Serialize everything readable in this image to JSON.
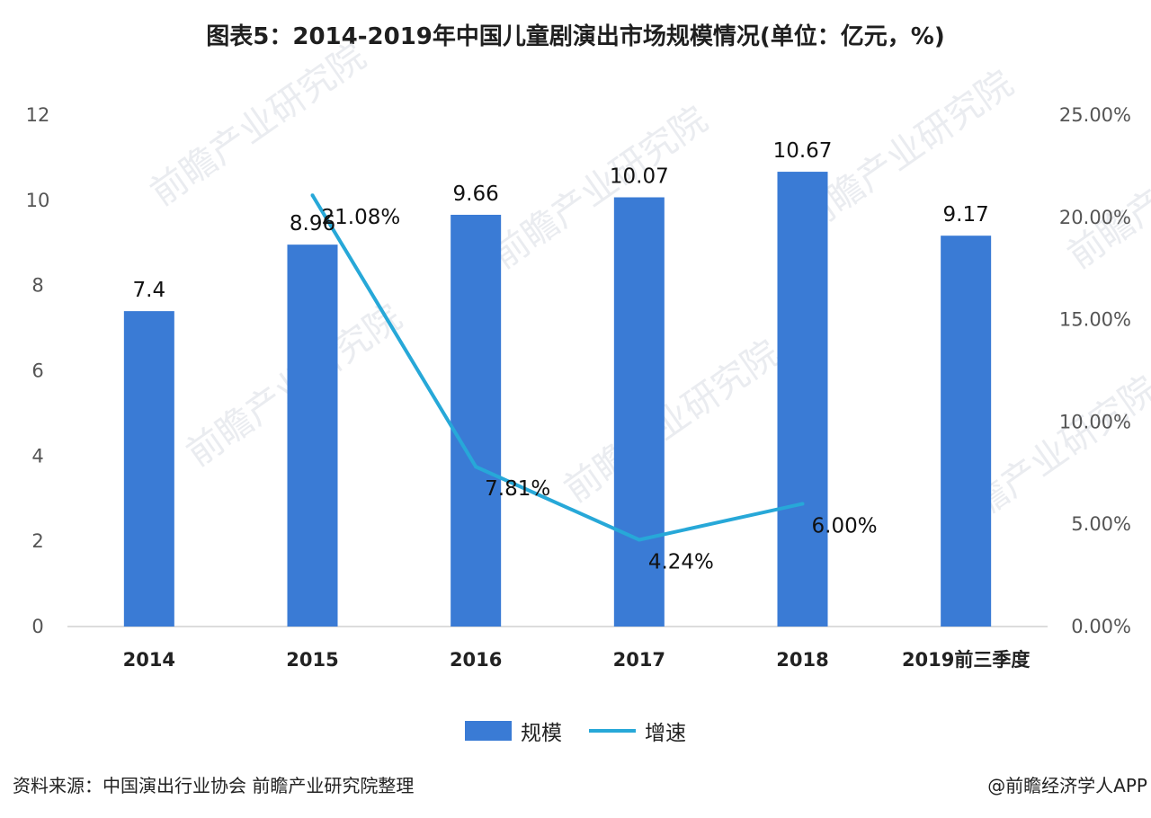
{
  "title": "图表5：2014-2019年中国儿童剧演出市场规模情况(单位：亿元，%)",
  "source": "资料来源：中国演出行业协会 前瞻产业研究院整理",
  "credit": "@前瞻经济学人APP",
  "watermark": "前瞻产业研究院",
  "colors": {
    "bar": "#3a7bd5",
    "line": "#27a8d8"
  },
  "chart_data": {
    "type": "bar",
    "categories": [
      "2014",
      "2015",
      "2016",
      "2017",
      "2018",
      "2019前三季度"
    ],
    "series": [
      {
        "name": "规模",
        "type": "bar",
        "axis": "left",
        "values": [
          7.4,
          8.96,
          9.66,
          10.07,
          10.67,
          9.17
        ],
        "labels": [
          "7.4",
          "8.96",
          "9.66",
          "10.07",
          "10.67",
          "9.17"
        ]
      },
      {
        "name": "增速",
        "type": "line",
        "axis": "right",
        "values": [
          null,
          21.08,
          7.81,
          4.24,
          6.0,
          null
        ],
        "labels": [
          null,
          "21.08%",
          "7.81%",
          "4.24%",
          "6.00%",
          null
        ]
      }
    ],
    "left_axis": {
      "ylim": [
        0,
        12
      ],
      "ticks": [
        "0",
        "2",
        "4",
        "6",
        "8",
        "10",
        "12"
      ]
    },
    "right_axis": {
      "ylim": [
        0,
        25
      ],
      "ticks": [
        "0.00%",
        "5.00%",
        "10.00%",
        "15.00%",
        "20.00%",
        "25.00%"
      ]
    },
    "legend": {
      "position": "bottom",
      "entries": [
        "规模",
        "增速"
      ]
    },
    "grid": false
  }
}
